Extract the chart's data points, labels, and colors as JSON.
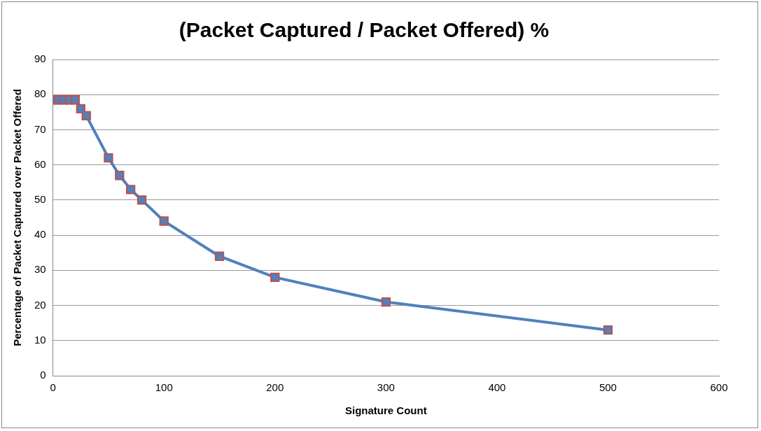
{
  "chart_data": {
    "type": "line",
    "title": "(Packet Captured / Packet Offered) %",
    "xlabel": "Signature Count",
    "ylabel": "Percentage of Packet Captured over Packet Offered",
    "x": [
      1,
      5,
      10,
      15,
      20,
      25,
      30,
      50,
      60,
      70,
      80,
      100,
      150,
      200,
      300,
      500
    ],
    "series": [
      {
        "color": "#4f81bd",
        "values": [
          78.5,
          78.5,
          78.5,
          78.5,
          78.5,
          76,
          74,
          62,
          57,
          53,
          50,
          44,
          34,
          28,
          21,
          13
        ]
      }
    ],
    "xlim": [
      0,
      600
    ],
    "xticks": [
      0,
      100,
      200,
      300,
      400,
      500,
      600
    ],
    "ylim": [
      0,
      90
    ],
    "yticks": [
      0,
      10,
      20,
      30,
      40,
      50,
      60,
      70,
      80,
      90
    ],
    "grid": "y",
    "legend": false,
    "marker": "square",
    "line_style": "solid"
  }
}
